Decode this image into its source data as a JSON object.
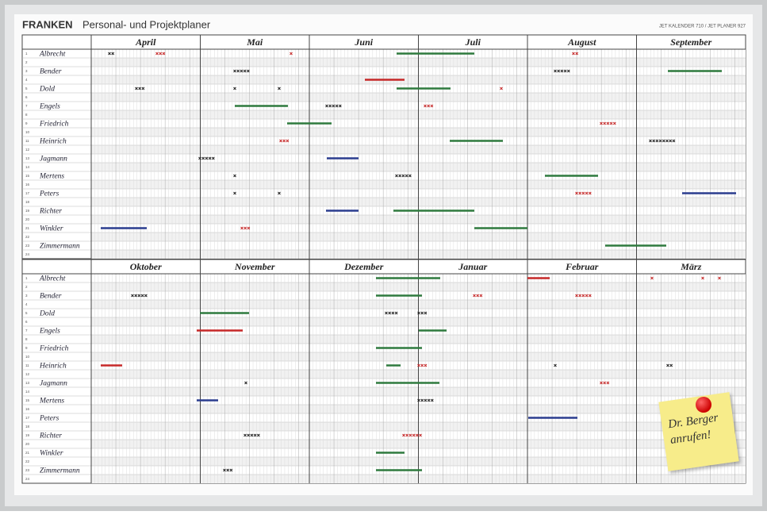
{
  "header": {
    "brand": "FRANKEN",
    "title": "Personal- und Projektplaner",
    "product": "JET KALENDER 710 / JET PLANER 927"
  },
  "halves": [
    {
      "months": [
        "April",
        "Mai",
        "Juni",
        "Juli",
        "August",
        "September"
      ]
    },
    {
      "months": [
        "Oktober",
        "November",
        "Dezember",
        "Januar",
        "Februar",
        "März"
      ]
    }
  ],
  "rows": [
    "1",
    "2",
    "3",
    "4",
    "5",
    "6",
    "7",
    "8",
    "9",
    "10",
    "11",
    "12",
    "13",
    "14",
    "15",
    "16",
    "17",
    "18",
    "19",
    "20",
    "21",
    "22",
    "23",
    "24"
  ],
  "names": [
    "Albrecht",
    "Bender",
    "Dold",
    "Engels",
    "Friedrich",
    "Heinrich",
    "Jagmann",
    "Mertens",
    "Peters",
    "Richter",
    "Winkler",
    "Zimmermann"
  ],
  "note": {
    "lines": [
      "Dr. Berger",
      "anrufen!"
    ]
  }
}
